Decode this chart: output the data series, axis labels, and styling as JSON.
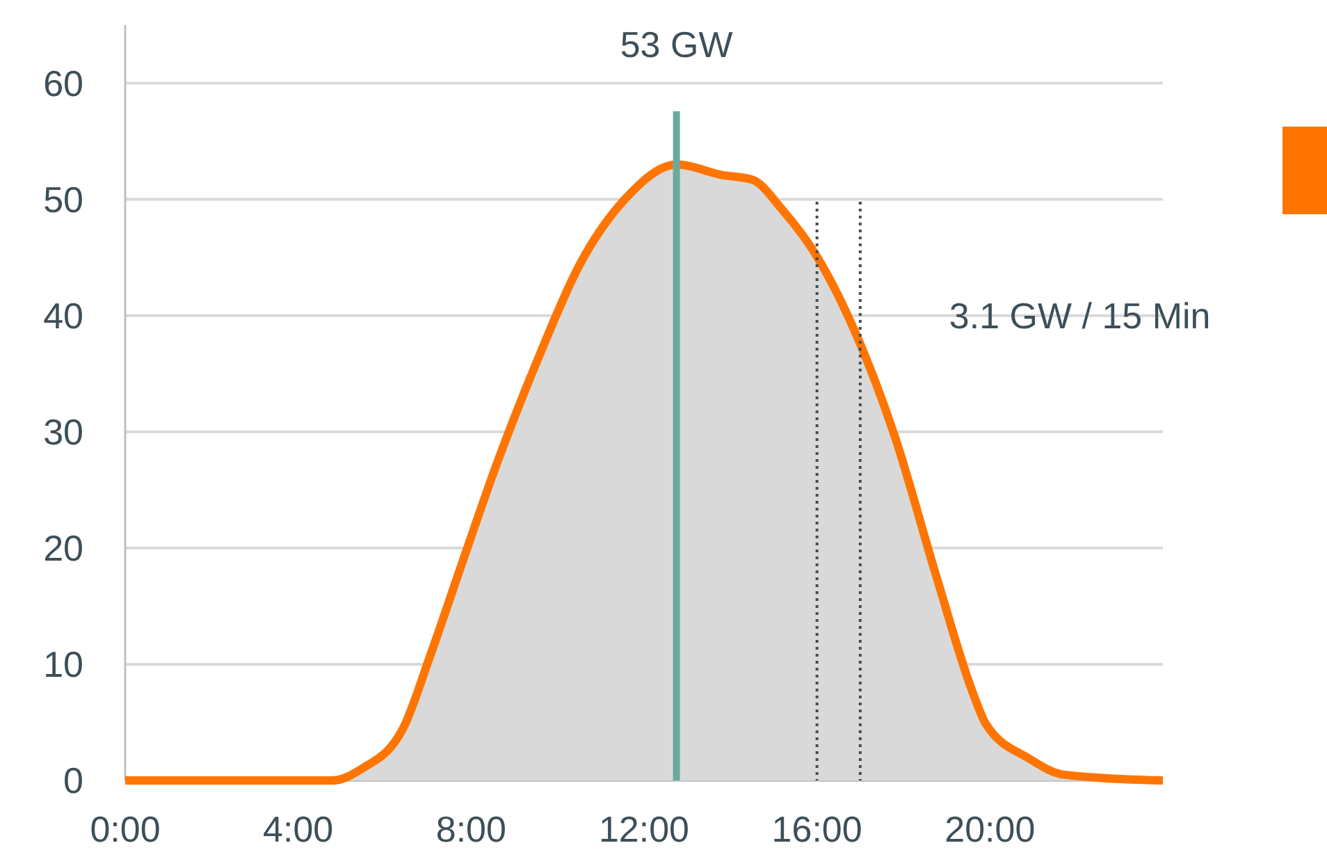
{
  "chart_data": {
    "type": "area",
    "x": [
      0,
      4.8,
      5.47,
      6.43,
      7.07,
      7.81,
      8.59,
      9.55,
      10.5,
      11.58,
      12.76,
      13.8,
      14.5,
      15.2,
      15.98,
      16.95,
      17.8,
      18.75,
      19.6,
      19.9,
      20.9,
      21.7,
      24
    ],
    "series": [
      {
        "color": "#ff7500",
        "values": [
          0,
          0,
          1,
          4.5,
          10.9,
          18.9,
          27.2,
          36.3,
          44.3,
          50.1,
          53,
          52.1,
          51.7,
          49.1,
          45.2,
          38,
          29.6,
          17.7,
          7.6,
          4.9,
          1.9,
          0.5,
          0
        ]
      }
    ],
    "xlim": [
      0,
      24
    ],
    "ylim": [
      0,
      65
    ],
    "xticks": [
      {
        "value": 0,
        "label": "0:00"
      },
      {
        "value": 4,
        "label": "4:00"
      },
      {
        "value": 8,
        "label": "8:00"
      },
      {
        "value": 12,
        "label": "12:00"
      },
      {
        "value": 16,
        "label": "16:00"
      },
      {
        "value": 20,
        "label": "20:00"
      }
    ],
    "yticks": [
      0,
      10,
      20,
      30,
      40,
      50,
      60
    ],
    "grid": "y",
    "ref_lines": [
      {
        "axis": "x",
        "value": 12.75,
        "color": "#6aaa9e",
        "line_style": "solid"
      },
      {
        "axis": "x",
        "value": 16,
        "color": "#3d4f58",
        "line_style": "dotted"
      },
      {
        "axis": "x",
        "value": 17,
        "color": "#3d4f58",
        "line_style": "dotted"
      }
    ],
    "annotations": [
      "53 GW",
      {
        "text": "3.1 GW / 15 Min",
        "x": 17,
        "y": 40
      }
    ]
  }
}
